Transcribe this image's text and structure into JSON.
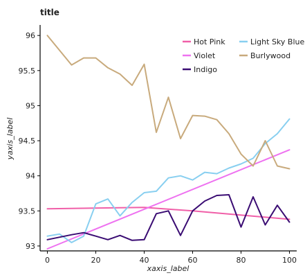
{
  "chart_data": {
    "type": "line",
    "title": "title",
    "xlabel": "xaxis_label",
    "ylabel": "yaxis_label",
    "xlim": [
      -3,
      103
    ],
    "ylim": [
      92.93,
      96.15
    ],
    "x_ticks": [
      0,
      20,
      40,
      60,
      80,
      100
    ],
    "x_tick_labels": [
      "0",
      "20",
      "40",
      "60",
      "80",
      "100"
    ],
    "y_ticks": [
      93,
      93.5,
      94,
      94.5,
      95,
      95.5,
      96
    ],
    "y_tick_labels": [
      "93",
      "93.5",
      "94",
      "94.5",
      "95",
      "95.5",
      "96"
    ],
    "grid": false,
    "legend_position": "top-right",
    "series": [
      {
        "name": "Hot Pink",
        "color": "#F05FA8",
        "x": [
          0,
          40,
          60,
          100
        ],
        "y": [
          93.53,
          93.55,
          93.5,
          93.38
        ]
      },
      {
        "name": "Violet",
        "color": "#EE72F0",
        "x": [
          0,
          100
        ],
        "y": [
          92.96,
          94.37
        ]
      },
      {
        "name": "Light Sky Blue",
        "color": "#88CFF0",
        "x": [
          0,
          5,
          10,
          15,
          20,
          25,
          30,
          35,
          40,
          45,
          50,
          55,
          60,
          65,
          70,
          75,
          80,
          85,
          90,
          95,
          100
        ],
        "y": [
          93.14,
          93.17,
          93.05,
          93.14,
          93.6,
          93.67,
          93.43,
          93.62,
          93.76,
          93.78,
          93.97,
          94.0,
          93.94,
          94.05,
          94.03,
          94.11,
          94.17,
          94.25,
          94.46,
          94.6,
          94.81
        ]
      },
      {
        "name": "Indigo",
        "color": "#3A0C73",
        "x": [
          0,
          10,
          15,
          20,
          25,
          30,
          35,
          40,
          45,
          50,
          55,
          60,
          65,
          70,
          75,
          80,
          85,
          90,
          95,
          100
        ],
        "y": [
          93.09,
          93.16,
          93.19,
          93.14,
          93.09,
          93.15,
          93.08,
          93.09,
          93.46,
          93.5,
          93.15,
          93.5,
          93.64,
          93.72,
          93.73,
          93.27,
          93.7,
          93.3,
          93.58,
          93.34
        ]
      },
      {
        "name": "Burlywood",
        "color": "#C8AA7C",
        "x": [
          0,
          10,
          15,
          20,
          25,
          30,
          35,
          40,
          45,
          50,
          55,
          60,
          65,
          70,
          75,
          80,
          85,
          90,
          95,
          100
        ],
        "y": [
          96.0,
          95.58,
          95.68,
          95.68,
          95.54,
          95.45,
          95.29,
          95.59,
          94.62,
          95.12,
          94.53,
          94.86,
          94.85,
          94.8,
          94.6,
          94.31,
          94.14,
          94.5,
          94.14,
          94.1
        ]
      }
    ],
    "legend": [
      {
        "label": "Hot Pink",
        "color": "#F05FA8"
      },
      {
        "label": "Light Sky Blue",
        "color": "#88CFF0"
      },
      {
        "label": "Violet",
        "color": "#EE72F0"
      },
      {
        "label": "Burlywood",
        "color": "#C8AA7C"
      },
      {
        "label": "Indigo",
        "color": "#3A0C73"
      }
    ]
  }
}
